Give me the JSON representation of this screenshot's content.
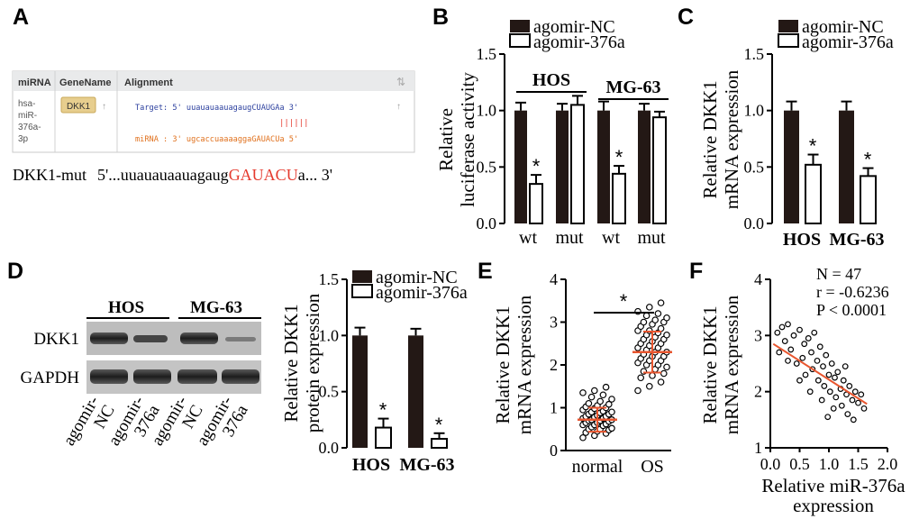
{
  "colors": {
    "nc_bar": "#231815",
    "treated_bar": "#ffffff",
    "red_text": "#e53a2e",
    "target_blue": "#2b3f9e",
    "mirna_orange": "#e0701c",
    "fit_line": "#e8562f",
    "error_orange": "#e8562f",
    "gene_badge": "#e7ce8e",
    "table_header": "#e9eaeb"
  },
  "panel_a": {
    "letter": "A",
    "headers": {
      "mirna": "miRNA",
      "gene": "GeneName",
      "alignment": "Alignment"
    },
    "mirna_lines": [
      "hsa-",
      "miR-",
      "376a-",
      "3p"
    ],
    "gene": "DKK1",
    "target_line": "Target: 5' uuauauaauagaugCUAUGAa 3'",
    "pairing": "||||||",
    "mirna_line": "miRNA : 3' ugcaccuaaaaggaGAUACUa 5'",
    "mut_label": "DKK1-mut",
    "mut_seq_prefix": "5'...uuauauaauagaug",
    "mut_seq_red": "GAUACU",
    "mut_seq_suffix": "a... 3'",
    "sort_glyph": "⇅",
    "up_arrow": "↑"
  },
  "legend": {
    "nc": "agomir-NC",
    "treated": "agomir-376a"
  },
  "star": "*",
  "chart_data": [
    {
      "panel": "B",
      "type": "bar",
      "title": "",
      "ylabel": "Relative\nluciferase activity",
      "ylim": [
        0,
        1.5
      ],
      "yticks": [
        "0.0",
        "0.5",
        "1.0",
        "1.5"
      ],
      "groups": [
        "HOS",
        "MG-63"
      ],
      "categories": [
        "wt",
        "mut",
        "wt",
        "mut"
      ],
      "series": [
        {
          "name": "agomir-NC",
          "values": [
            1.0,
            1.0,
            1.0,
            1.0
          ],
          "errors": [
            0.07,
            0.06,
            0.08,
            0.06
          ]
        },
        {
          "name": "agomir-376a",
          "values": [
            0.35,
            1.05,
            0.44,
            0.94
          ],
          "errors": [
            0.08,
            0.08,
            0.07,
            0.05
          ]
        }
      ],
      "significant": [
        true,
        false,
        true,
        false
      ]
    },
    {
      "panel": "C",
      "type": "bar",
      "ylabel": "Relative DKK1\nmRNA expression",
      "ylim": [
        0,
        1.5
      ],
      "yticks": [
        "0.0",
        "0.5",
        "1.0",
        "1.5"
      ],
      "categories": [
        "HOS",
        "MG-63"
      ],
      "series": [
        {
          "name": "agomir-NC",
          "values": [
            1.0,
            1.0
          ],
          "errors": [
            0.08,
            0.08
          ]
        },
        {
          "name": "agomir-376a",
          "values": [
            0.52,
            0.42
          ],
          "errors": [
            0.09,
            0.07
          ]
        }
      ],
      "significant": [
        true,
        true
      ]
    },
    {
      "panel": "D",
      "type": "bar",
      "ylabel": "Relative DKK1\nprotein expression",
      "ylim": [
        0,
        1.5
      ],
      "yticks": [
        "0.0",
        "0.5",
        "1.0",
        "1.5"
      ],
      "categories": [
        "HOS",
        "MG-63"
      ],
      "series": [
        {
          "name": "agomir-NC",
          "values": [
            1.0,
            1.0
          ],
          "errors": [
            0.07,
            0.06
          ]
        },
        {
          "name": "agomir-376a",
          "values": [
            0.18,
            0.08
          ],
          "errors": [
            0.08,
            0.05
          ]
        }
      ],
      "significant": [
        true,
        true
      ]
    },
    {
      "panel": "E",
      "type": "scatter",
      "ylabel": "Relative DKK1\nmRNA expression",
      "ylim": [
        0,
        4
      ],
      "yticks": [
        "0",
        "1",
        "2",
        "3",
        "4"
      ],
      "categories": [
        "normal",
        "OS"
      ],
      "means": [
        0.72,
        2.3
      ],
      "sd": [
        0.28,
        0.48
      ],
      "normal_values": [
        0.3,
        0.35,
        0.4,
        0.42,
        0.45,
        0.48,
        0.5,
        0.5,
        0.52,
        0.55,
        0.58,
        0.6,
        0.6,
        0.62,
        0.65,
        0.65,
        0.68,
        0.7,
        0.7,
        0.72,
        0.72,
        0.75,
        0.75,
        0.78,
        0.8,
        0.8,
        0.82,
        0.85,
        0.85,
        0.88,
        0.9,
        0.9,
        0.92,
        0.95,
        0.98,
        1.0,
        1.02,
        1.05,
        1.08,
        1.1,
        1.15,
        1.2,
        1.25,
        1.3,
        1.35,
        1.4,
        1.48
      ],
      "os_values": [
        1.4,
        1.5,
        1.6,
        1.7,
        1.75,
        1.8,
        1.85,
        1.9,
        1.95,
        2.0,
        2.0,
        2.05,
        2.1,
        2.1,
        2.15,
        2.2,
        2.2,
        2.25,
        2.3,
        2.3,
        2.35,
        2.4,
        2.4,
        2.45,
        2.5,
        2.5,
        2.55,
        2.6,
        2.6,
        2.65,
        2.7,
        2.7,
        2.75,
        2.8,
        2.8,
        2.85,
        2.9,
        2.95,
        3.0,
        3.0,
        3.05,
        3.1,
        3.15,
        3.2,
        3.25,
        3.35,
        3.45
      ]
    },
    {
      "panel": "F",
      "type": "scatter",
      "xlabel": "Relative miR-376a\nexpression",
      "ylabel": "Relative DKK1\nmRNA expression",
      "xlim": [
        0,
        2.0
      ],
      "ylim": [
        1,
        4
      ],
      "xticks": [
        "0.0",
        "0.5",
        "1.0",
        "1.5",
        "2.0"
      ],
      "yticks": [
        "1",
        "2",
        "3",
        "4"
      ],
      "annotations": [
        "N = 47",
        "r = -0.6236",
        "P < 0.0001"
      ],
      "fit": {
        "x": [
          0.05,
          1.65
        ],
        "y": [
          2.85,
          1.78
        ]
      },
      "points": [
        [
          0.12,
          3.05
        ],
        [
          0.2,
          3.15
        ],
        [
          0.25,
          2.9
        ],
        [
          0.3,
          3.2
        ],
        [
          0.35,
          2.75
        ],
        [
          0.4,
          3.0
        ],
        [
          0.45,
          2.5
        ],
        [
          0.5,
          3.1
        ],
        [
          0.55,
          2.6
        ],
        [
          0.58,
          2.85
        ],
        [
          0.6,
          2.3
        ],
        [
          0.65,
          2.95
        ],
        [
          0.7,
          2.7
        ],
        [
          0.72,
          2.4
        ],
        [
          0.75,
          3.05
        ],
        [
          0.8,
          2.55
        ],
        [
          0.82,
          2.2
        ],
        [
          0.85,
          2.8
        ],
        [
          0.9,
          2.45
        ],
        [
          0.92,
          2.1
        ],
        [
          0.95,
          2.65
        ],
        [
          1.0,
          2.3
        ],
        [
          1.02,
          2.0
        ],
        [
          1.05,
          2.5
        ],
        [
          1.1,
          2.25
        ],
        [
          1.12,
          1.9
        ],
        [
          1.15,
          2.35
        ],
        [
          1.2,
          2.05
        ],
        [
          1.22,
          1.75
        ],
        [
          1.25,
          2.2
        ],
        [
          1.3,
          1.95
        ],
        [
          1.32,
          1.6
        ],
        [
          1.35,
          2.1
        ],
        [
          1.4,
          1.85
        ],
        [
          1.42,
          1.5
        ],
        [
          1.45,
          2.0
        ],
        [
          1.5,
          1.8
        ],
        [
          1.55,
          1.95
        ],
        [
          1.6,
          1.7
        ],
        [
          0.15,
          2.7
        ],
        [
          0.3,
          2.55
        ],
        [
          0.5,
          2.2
        ],
        [
          0.68,
          2.0
        ],
        [
          0.88,
          1.85
        ],
        [
          1.08,
          1.7
        ],
        [
          1.28,
          2.45
        ],
        [
          0.98,
          1.55
        ]
      ]
    }
  ],
  "blot": {
    "groups": [
      "HOS",
      "MG-63"
    ],
    "rows": [
      "DKK1",
      "GAPDH"
    ],
    "lanes": [
      "agomir-\nNC",
      "agomir-\n376a",
      "agomir-\nNC",
      "agomir-\n376a"
    ]
  },
  "letters": {
    "B": "B",
    "C": "C",
    "D": "D",
    "E": "E",
    "F": "F"
  }
}
